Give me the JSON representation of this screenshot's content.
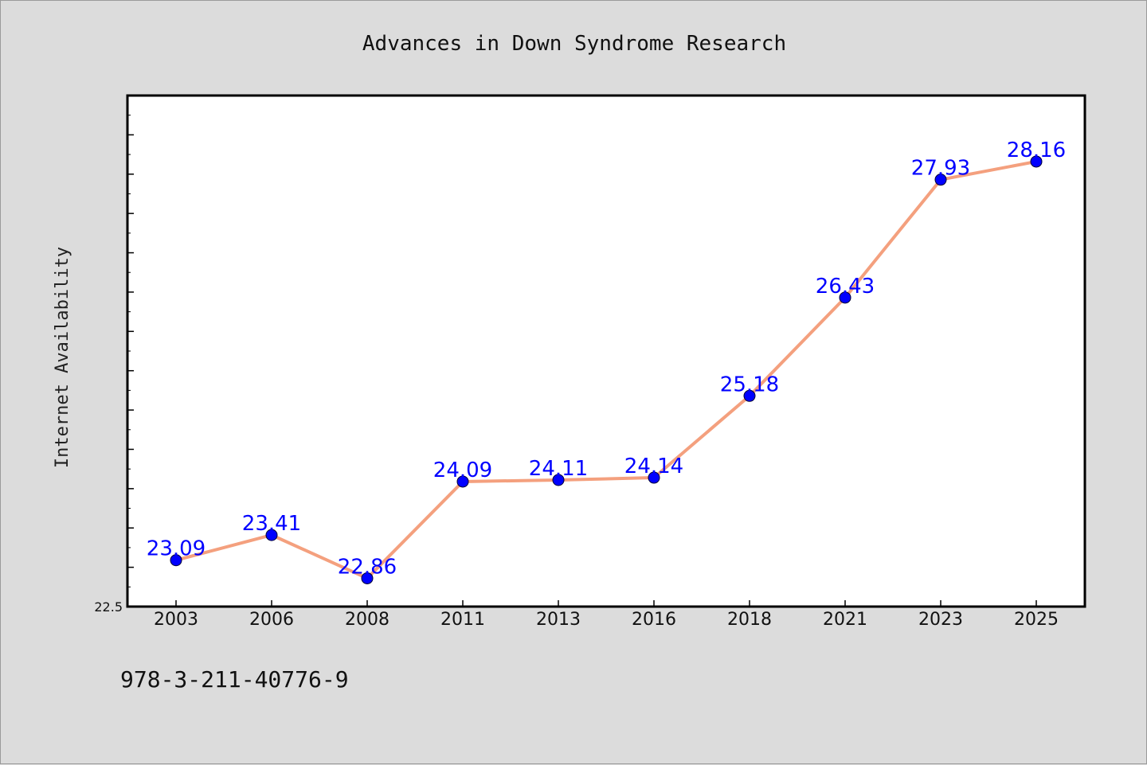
{
  "chart_data": {
    "type": "line",
    "title": "Advances in Down Syndrome Research",
    "xlabel": "",
    "ylabel": "Internet Availability",
    "categories": [
      "2003",
      "2006",
      "2008",
      "2011",
      "2013",
      "2016",
      "2018",
      "2021",
      "2023",
      "2025"
    ],
    "series": [
      {
        "values": [
          23.09,
          23.41,
          22.86,
          24.09,
          24.11,
          24.14,
          25.18,
          26.43,
          27.93,
          28.16
        ],
        "labels": [
          "23.09",
          "23.41",
          "22.86",
          "24.09",
          "24.11",
          "24.14",
          "25.18",
          "26.43",
          "27.93",
          "28.16"
        ]
      }
    ],
    "ylim": [
      22.5,
      29.0
    ],
    "yticks_labeled": [
      "22.5"
    ],
    "grid": false,
    "legend": "none",
    "colors": {
      "line": "#f4a07e",
      "marker": "#0000ff",
      "data_label": "#0000ff",
      "background": "#dcdcdc",
      "plot_background": "#ffffff"
    }
  },
  "footer": {
    "isbn": "978-3-211-40776-9"
  }
}
